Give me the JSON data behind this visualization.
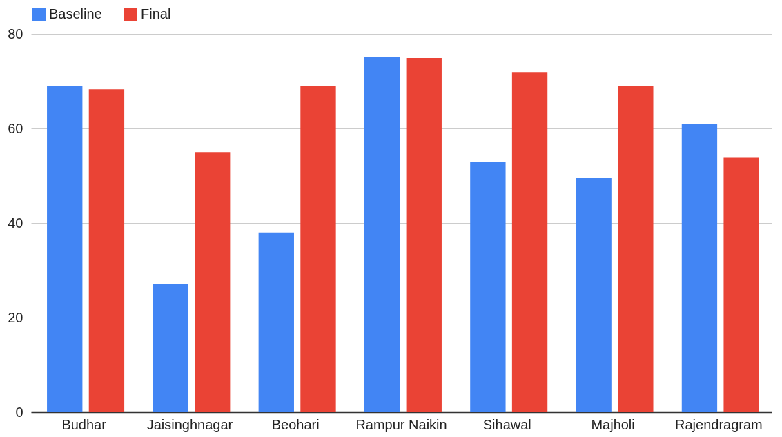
{
  "chart_data": {
    "type": "bar",
    "categories": [
      "Budhar",
      "Jaisinghnagar",
      "Beohari",
      "Rampur Naikin",
      "Sihawal",
      "Majholi",
      "Rajendragram"
    ],
    "series": [
      {
        "name": "Baseline",
        "color": "#4285f4",
        "values": [
          69,
          27,
          38,
          75.2,
          52.9,
          49.5,
          61
        ]
      },
      {
        "name": "Final",
        "color": "#ea4335",
        "values": [
          68.3,
          55,
          69,
          74.9,
          71.8,
          69,
          53.8
        ]
      }
    ],
    "ylim": [
      0,
      80
    ],
    "yticks": [
      0,
      20,
      40,
      60,
      80
    ],
    "grid": "y",
    "legend": "top"
  }
}
